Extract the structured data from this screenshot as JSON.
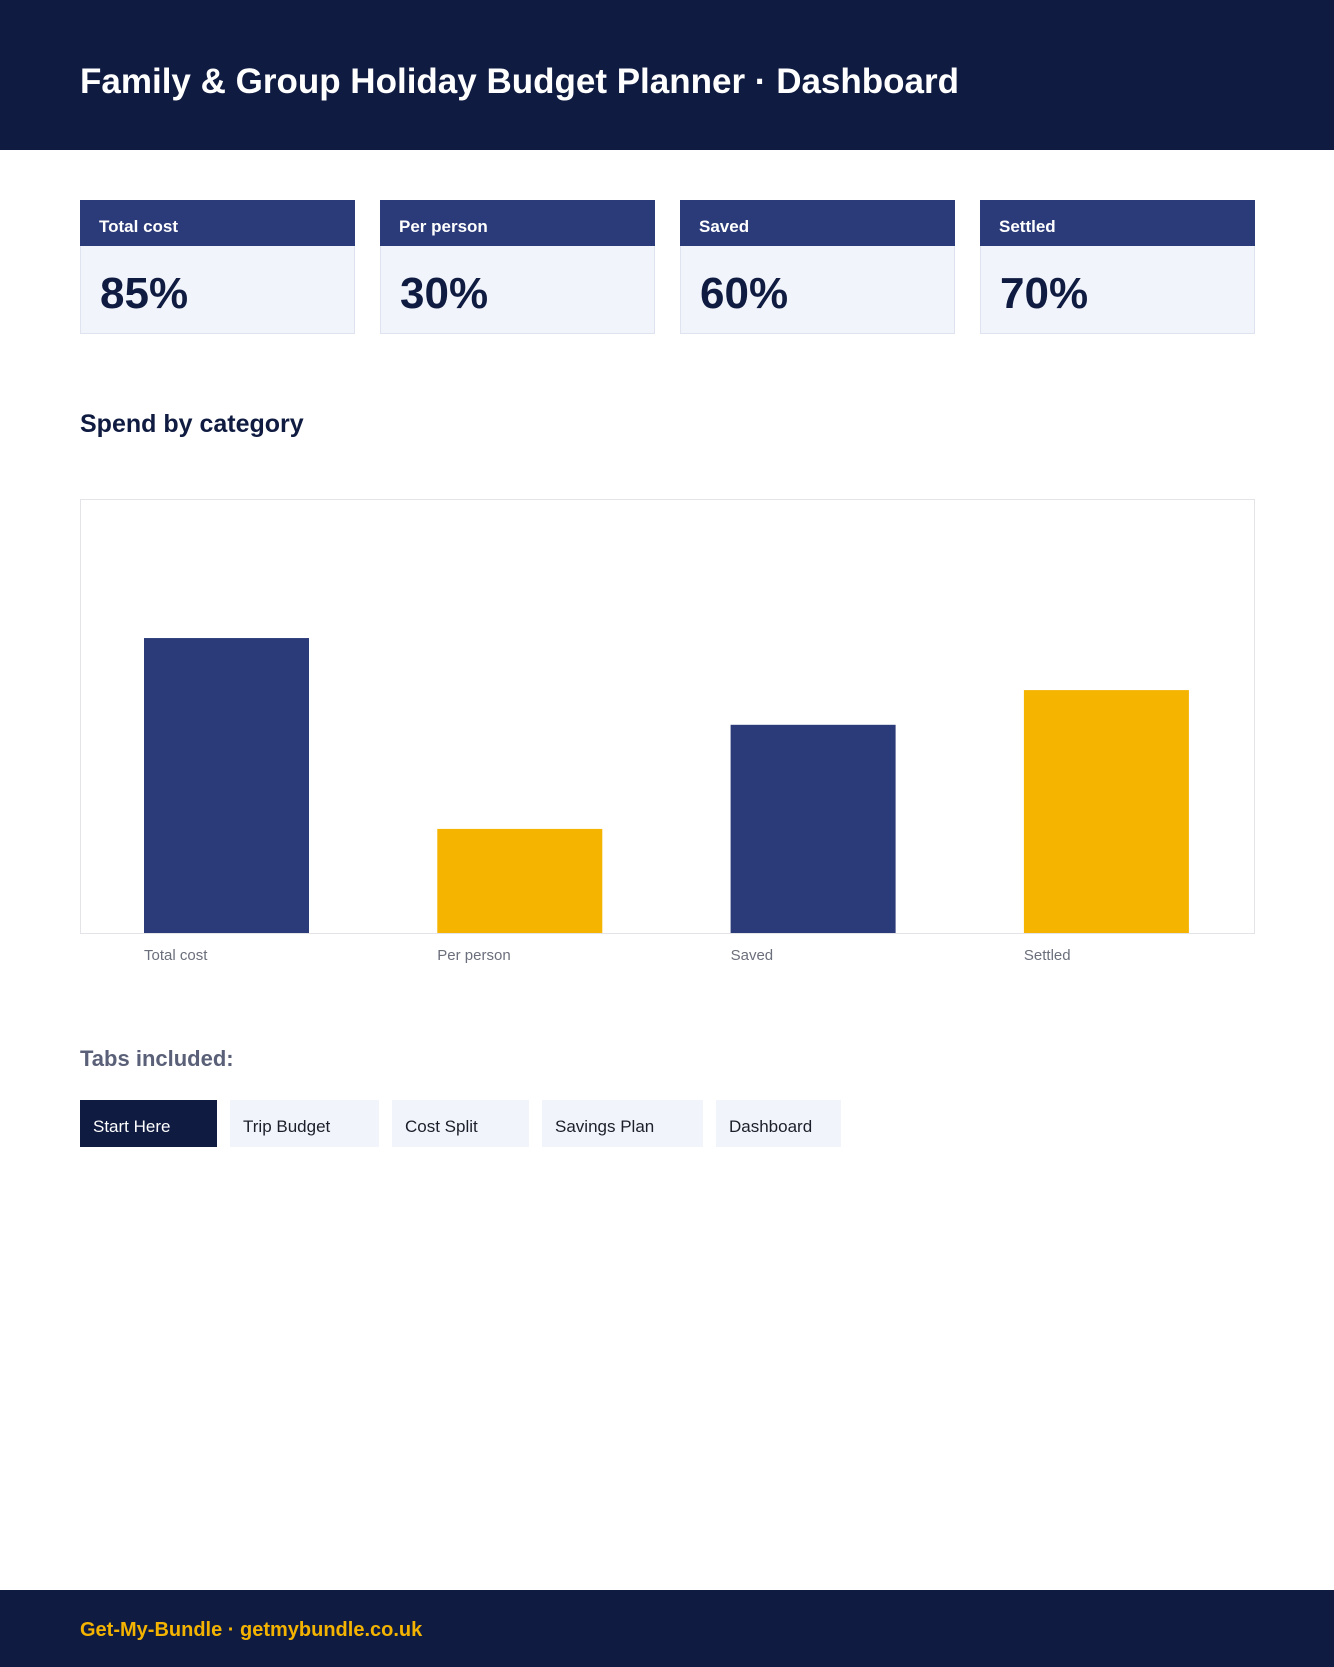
{
  "header": {
    "title": "Family & Group Holiday Budget Planner · Dashboard"
  },
  "kpis": [
    {
      "label": "Total cost",
      "value": "85%"
    },
    {
      "label": "Per person",
      "value": "30%"
    },
    {
      "label": "Saved",
      "value": "60%"
    },
    {
      "label": "Settled",
      "value": "70%"
    }
  ],
  "section": {
    "title": "Spend by category"
  },
  "chart_data": {
    "type": "bar",
    "categories": [
      "Total cost",
      "Per person",
      "Saved",
      "Settled"
    ],
    "values": [
      85,
      30,
      60,
      70
    ],
    "title": "",
    "xlabel": "",
    "ylabel": "",
    "ylim": [
      0,
      100
    ],
    "grid": false,
    "colors": [
      "#2b3a78",
      "#f5b400",
      "#2b3a78",
      "#f5b400"
    ]
  },
  "tabs": {
    "title": "Tabs included:",
    "items": [
      {
        "label": "Start Here",
        "active": true
      },
      {
        "label": "Trip Budget",
        "active": false
      },
      {
        "label": "Cost Split",
        "active": false
      },
      {
        "label": "Savings Plan",
        "active": false
      },
      {
        "label": "Dashboard",
        "active": false
      }
    ]
  },
  "footer": {
    "text": "Get-My-Bundle · getmybundle.co.uk"
  },
  "colors": {
    "navy": "#0f1b40",
    "card_header": "#2b3a78",
    "accent_yellow": "#f5b400",
    "card_bg": "#f2f4fb"
  }
}
